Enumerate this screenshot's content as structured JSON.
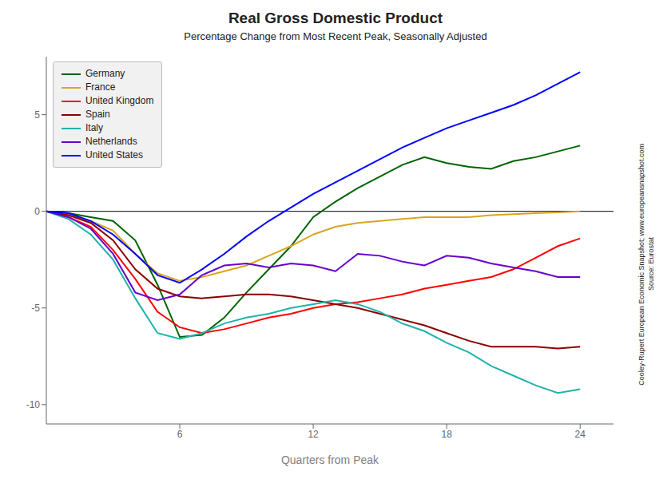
{
  "chart_data": {
    "type": "line",
    "title": "Real Gross Domestic Product",
    "subtitle": "Percentage Change from Most Recent Peak, Seasonally Adjusted",
    "xlabel": "Quarters from Peak",
    "x": [
      0,
      1,
      2,
      3,
      4,
      5,
      6,
      7,
      8,
      9,
      10,
      11,
      12,
      13,
      14,
      15,
      16,
      17,
      18,
      19,
      20,
      21,
      22,
      23,
      24
    ],
    "xlim": [
      0,
      25.5
    ],
    "ylim": [
      -11,
      8
    ],
    "xticks": [
      6,
      12,
      18,
      24
    ],
    "yticks": [
      -10,
      -5,
      0,
      5
    ],
    "grid": false,
    "legend": "upper left",
    "hlines": [
      0
    ],
    "annotations": [
      "Cooley-Rupert European Economic Snapshot; www.europeansnapshot.com",
      "Source: Eurostat"
    ],
    "series": [
      {
        "name": "Germany",
        "color": "#006400",
        "values": [
          0.0,
          -0.1,
          -0.3,
          -0.5,
          -1.5,
          -3.8,
          -6.5,
          -6.4,
          -5.5,
          -4.2,
          -3.0,
          -1.8,
          -0.3,
          0.5,
          1.2,
          1.8,
          2.4,
          2.8,
          2.5,
          2.3,
          2.2,
          2.6,
          2.8,
          3.1,
          3.4
        ]
      },
      {
        "name": "France",
        "color": "#DAA520",
        "values": [
          0.0,
          -0.2,
          -0.5,
          -1.0,
          -2.2,
          -3.2,
          -3.6,
          -3.4,
          -3.1,
          -2.8,
          -2.3,
          -1.8,
          -1.2,
          -0.8,
          -0.6,
          -0.5,
          -0.4,
          -0.3,
          -0.3,
          -0.3,
          -0.2,
          -0.15,
          -0.1,
          -0.05,
          0.0
        ]
      },
      {
        "name": "United Kingdom",
        "color": "#FF0000",
        "values": [
          0.0,
          -0.3,
          -0.8,
          -2.0,
          -3.5,
          -5.2,
          -6.0,
          -6.3,
          -6.1,
          -5.8,
          -5.5,
          -5.3,
          -5.0,
          -4.8,
          -4.7,
          -4.5,
          -4.3,
          -4.0,
          -3.8,
          -3.6,
          -3.4,
          -3.0,
          -2.4,
          -1.8,
          -1.4
        ]
      },
      {
        "name": "Spain",
        "color": "#8B0000",
        "values": [
          0.0,
          -0.2,
          -0.6,
          -1.5,
          -3.0,
          -4.0,
          -4.4,
          -4.5,
          -4.4,
          -4.3,
          -4.3,
          -4.4,
          -4.6,
          -4.8,
          -5.0,
          -5.3,
          -5.6,
          -5.9,
          -6.3,
          -6.7,
          -7.0,
          -7.0,
          -7.0,
          -7.1,
          -7.0
        ]
      },
      {
        "name": "Italy",
        "color": "#20B2AA",
        "values": [
          0.0,
          -0.4,
          -1.2,
          -2.5,
          -4.5,
          -6.3,
          -6.6,
          -6.3,
          -5.8,
          -5.5,
          -5.3,
          -5.0,
          -4.8,
          -4.6,
          -4.8,
          -5.2,
          -5.8,
          -6.2,
          -6.8,
          -7.3,
          -8.0,
          -8.5,
          -9.0,
          -9.4,
          -9.2
        ]
      },
      {
        "name": "Netherlands",
        "color": "#6600CC",
        "values": [
          0.0,
          -0.3,
          -0.9,
          -2.2,
          -4.2,
          -4.6,
          -4.3,
          -3.3,
          -2.8,
          -2.7,
          -2.9,
          -2.7,
          -2.8,
          -3.1,
          -2.2,
          -2.3,
          -2.6,
          -2.8,
          -2.3,
          -2.4,
          -2.7,
          -2.9,
          -3.1,
          -3.4,
          -3.4
        ]
      },
      {
        "name": "United States",
        "color": "#0000FF",
        "values": [
          0.0,
          -0.1,
          -0.5,
          -1.2,
          -2.2,
          -3.3,
          -3.7,
          -3.0,
          -2.2,
          -1.3,
          -0.5,
          0.2,
          0.9,
          1.5,
          2.1,
          2.7,
          3.3,
          3.8,
          4.3,
          4.7,
          5.1,
          5.5,
          6.0,
          6.6,
          7.2
        ]
      }
    ]
  }
}
